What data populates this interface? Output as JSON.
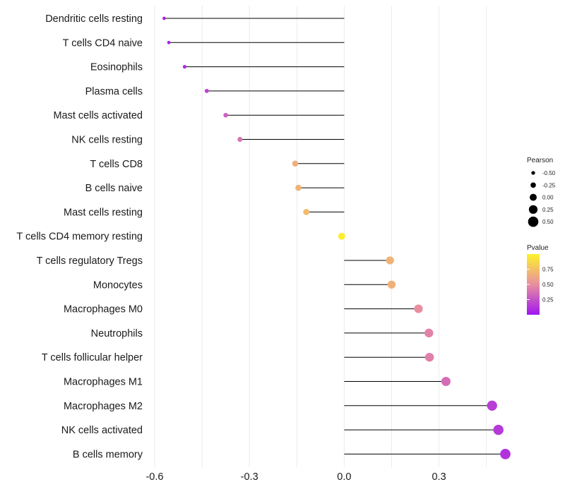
{
  "chart_data": {
    "type": "lollipop",
    "title": "",
    "xlabel": "",
    "ylabel": "",
    "xlim": [
      -0.62,
      0.52
    ],
    "xticks": [
      -0.6,
      -0.3,
      0.0,
      0.3
    ],
    "xtick_labels": [
      "-0.6",
      "-0.3",
      "0.0",
      "0.3"
    ],
    "grid": true,
    "points": [
      {
        "category": "Dendritic cells resting",
        "pearson": -0.57,
        "pvalue": 0.04
      },
      {
        "category": "T cells CD4 naive",
        "pearson": -0.555,
        "pvalue": 0.06
      },
      {
        "category": "Eosinophils",
        "pearson": -0.505,
        "pvalue": 0.1
      },
      {
        "category": "Plasma cells",
        "pearson": -0.435,
        "pvalue": 0.2
      },
      {
        "category": "Mast cells activated",
        "pearson": -0.375,
        "pvalue": 0.3
      },
      {
        "category": "NK cells resting",
        "pearson": -0.33,
        "pvalue": 0.38
      },
      {
        "category": "T cells CD8",
        "pearson": -0.155,
        "pvalue": 0.66
      },
      {
        "category": "B cells naive",
        "pearson": -0.145,
        "pvalue": 0.68
      },
      {
        "category": "Mast cells resting",
        "pearson": -0.12,
        "pvalue": 0.72
      },
      {
        "category": "T cells CD4 memory resting",
        "pearson": -0.008,
        "pvalue": 0.98
      },
      {
        "category": "T cells regulatory  Tregs",
        "pearson": 0.145,
        "pvalue": 0.68
      },
      {
        "category": "Monocytes",
        "pearson": 0.15,
        "pvalue": 0.67
      },
      {
        "category": "Macrophages M0",
        "pearson": 0.235,
        "pvalue": 0.5
      },
      {
        "category": "Neutrophils",
        "pearson": 0.268,
        "pvalue": 0.45
      },
      {
        "category": "T cells follicular helper",
        "pearson": 0.27,
        "pvalue": 0.44
      },
      {
        "category": "Macrophages M1",
        "pearson": 0.322,
        "pvalue": 0.36
      },
      {
        "category": "Macrophages M2",
        "pearson": 0.468,
        "pvalue": 0.17
      },
      {
        "category": "NK cells activated",
        "pearson": 0.488,
        "pvalue": 0.15
      },
      {
        "category": "B cells memory",
        "pearson": 0.51,
        "pvalue": 0.12
      }
    ],
    "legend": {
      "size_title": "Pearson",
      "size_breaks": [
        -0.5,
        -0.25,
        0.0,
        0.25,
        0.5
      ],
      "size_labels": [
        "-0.50",
        "-0.25",
        "0.00",
        "0.25",
        "0.50"
      ],
      "color_title": "Pvalue",
      "color_breaks": [
        0.75,
        0.5,
        0.25
      ],
      "color_labels": [
        "0.75",
        "0.50",
        "0.25"
      ],
      "color_low": "#a016f0",
      "color_mid": "#e88fa0",
      "color_high": "#fdf22b",
      "pvalue_range": [
        0.0,
        1.0
      ]
    },
    "colors": {
      "stem": "#000000",
      "grid": "#ececec",
      "tick_text": "#1a1a1a"
    }
  }
}
